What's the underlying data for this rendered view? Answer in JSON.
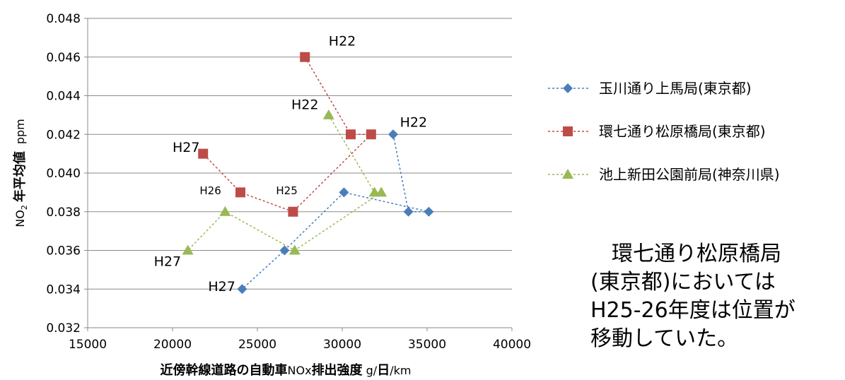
{
  "chart_data": {
    "type": "scatter",
    "xlim": [
      15000,
      40000
    ],
    "ylim": [
      0.032,
      0.048
    ],
    "x_ticks": [
      "15000",
      "20000",
      "25000",
      "30000",
      "35000",
      "40000"
    ],
    "y_ticks": [
      "0.032",
      "0.034",
      "0.036",
      "0.038",
      "0.040",
      "0.042",
      "0.044",
      "0.046",
      "0.048"
    ],
    "grid": "horizontal",
    "xlabel": {
      "bold": "近傍幹線道路の自動車",
      "mid": "NOx",
      "bold2": "排出強度",
      "unit_pre": " g/",
      "unit_bold": "日",
      "unit_post": "/km"
    },
    "ylabel": {
      "pre": "NO",
      "sub": "2",
      "bold": "年平均値",
      "unit": "ppm"
    },
    "legend_position": "right",
    "series": [
      {
        "name": "玉川通り上馬局(東京都)",
        "color": "#4a7ebb",
        "marker": "diamond",
        "points": [
          [
            33000,
            0.042
          ],
          [
            33900,
            0.038
          ],
          [
            35100,
            0.038
          ],
          [
            30100,
            0.039
          ],
          [
            26600,
            0.036
          ],
          [
            24100,
            0.034
          ]
        ]
      },
      {
        "name": "環七通り松原橋局(東京都)",
        "color": "#be4b48",
        "marker": "square",
        "points": [
          [
            27800,
            0.046
          ],
          [
            30500,
            0.042
          ],
          [
            31700,
            0.042
          ],
          [
            27100,
            0.038
          ],
          [
            24000,
            0.039
          ],
          [
            21800,
            0.041
          ]
        ]
      },
      {
        "name": "池上新田公園前局(神奈川県)",
        "color": "#98b954",
        "marker": "triangle",
        "points": [
          [
            29200,
            0.043
          ],
          [
            31900,
            0.039
          ],
          [
            32300,
            0.039
          ],
          [
            27200,
            0.036
          ],
          [
            23100,
            0.038
          ],
          [
            20900,
            0.036
          ]
        ]
      }
    ],
    "annotations": [
      {
        "text": "H22",
        "x": 29200,
        "y": 0.0466,
        "size": 19
      },
      {
        "text": "H22",
        "x": 27000,
        "y": 0.0433,
        "size": 19
      },
      {
        "text": "H22",
        "x": 33400,
        "y": 0.0424,
        "size": 19
      },
      {
        "text": "H27",
        "x": 20000,
        "y": 0.0411,
        "size": 19
      },
      {
        "text": "H26",
        "x": 21600,
        "y": 0.0389,
        "size": 15
      },
      {
        "text": "H25",
        "x": 26100,
        "y": 0.0389,
        "size": 15
      },
      {
        "text": "H27",
        "x": 18900,
        "y": 0.0352,
        "size": 19
      },
      {
        "text": "H27",
        "x": 22100,
        "y": 0.0339,
        "size": 19
      }
    ]
  },
  "note": {
    "lines": [
      "　環七通り松原橋局",
      "(東京都)においては",
      "H25-26年度は位置が",
      "移動していた。"
    ]
  }
}
